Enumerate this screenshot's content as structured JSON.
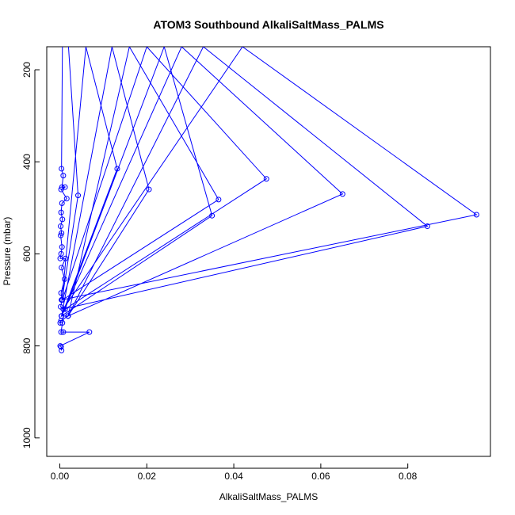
{
  "chart_data": {
    "type": "line",
    "title": "ATOM3 Southbound AlkaliSaltMass_PALMS",
    "xlabel": "AlkaliSaltMass_PALMS",
    "ylabel": "Pressure (mbar)",
    "xlim": [
      -0.003,
      0.099
    ],
    "ylim": [
      1040,
      150
    ],
    "y_inverted": true,
    "grid": false,
    "x_ticks": [
      0.0,
      0.02,
      0.04,
      0.06,
      0.08
    ],
    "x_tick_labels": [
      "0.00",
      "0.02",
      "0.04",
      "0.06",
      "0.08"
    ],
    "y_ticks": [
      200,
      400,
      600,
      800,
      1000
    ],
    "y_tick_labels": [
      "200",
      "400",
      "600",
      "800",
      "1000"
    ],
    "series": [
      {
        "color": "#0000ff",
        "marker": "open-circle",
        "line": "solid",
        "points": [
          [
            0.0006,
            150
          ],
          [
            0.0004,
            415
          ],
          [
            0.0008,
            430
          ],
          [
            0.0005,
            455
          ],
          [
            0.0012,
            455
          ],
          [
            0.0003,
            460
          ],
          [
            0.0016,
            480
          ],
          [
            0.0005,
            490
          ],
          [
            0.0003,
            510
          ],
          [
            0.0006,
            525
          ],
          [
            0.0002,
            540
          ],
          [
            0.0004,
            555
          ],
          [
            0.0002,
            560
          ],
          [
            0.0005,
            585
          ],
          [
            0.0003,
            600
          ],
          [
            0.0001,
            610
          ],
          [
            0.0013,
            610
          ],
          [
            0.0004,
            630
          ],
          [
            0.0011,
            655
          ],
          [
            0.0003,
            685
          ],
          [
            0.0005,
            700
          ],
          [
            0.0002,
            715
          ],
          [
            0.0012,
            720
          ],
          [
            0.0004,
            735
          ],
          [
            0.0019,
            735
          ],
          [
            0.0003,
            745
          ],
          [
            0.0001,
            750
          ],
          [
            0.0006,
            750
          ],
          [
            0.0003,
            770
          ],
          [
            0.0008,
            770
          ],
          [
            0.0068,
            770
          ],
          [
            0.0001,
            800
          ],
          [
            0.0003,
            802
          ],
          [
            0.0004,
            810
          ]
        ]
      },
      {
        "color": "#0000ff",
        "marker": "open-circle",
        "line": "solid",
        "points": [
          [
            0.002,
            150
          ],
          [
            0.0042,
            473
          ],
          [
            0.0005,
            700
          ],
          [
            0.006,
            150
          ],
          [
            0.0132,
            415
          ],
          [
            0.0004,
            735
          ],
          [
            0.012,
            150
          ],
          [
            0.0205,
            460
          ],
          [
            0.0019,
            735
          ],
          [
            0.016,
            150
          ],
          [
            0.0365,
            482
          ],
          [
            0.0006,
            700
          ],
          [
            0.02,
            150
          ],
          [
            0.0475,
            437
          ],
          [
            0.0012,
            720
          ],
          [
            0.024,
            150
          ],
          [
            0.035,
            517
          ],
          [
            0.0004,
            735
          ],
          [
            0.028,
            150
          ],
          [
            0.065,
            470
          ],
          [
            0.0019,
            735
          ],
          [
            0.033,
            150
          ],
          [
            0.0845,
            540
          ],
          [
            0.0008,
            720
          ],
          [
            0.042,
            150
          ],
          [
            0.0958,
            515
          ],
          [
            0.0004,
            700
          ]
        ]
      }
    ]
  }
}
